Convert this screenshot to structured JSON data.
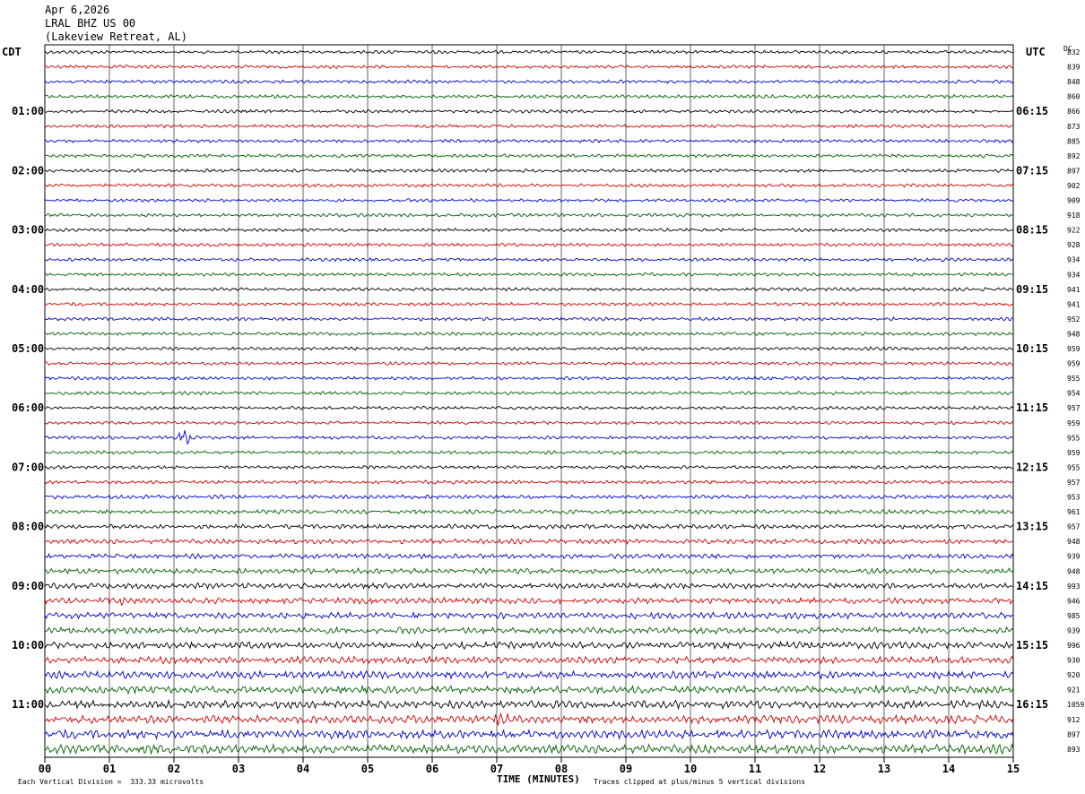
{
  "header": {
    "date": "Apr 6,2026",
    "station": "LRAL BHZ US 00",
    "location": "(Lakeview Retreat, AL)"
  },
  "left_axis_label": "CDT",
  "right_axis_label": "UTC",
  "dc_label": "DC",
  "bottom": {
    "left_note": "Each Vertical Division =  333.33 microvolts",
    "xlabel": "TIME (MINUTES)",
    "right_note": "Traces clipped at plus/minus 5 vertical divisions"
  },
  "colors": {
    "trace_cycle": [
      "#000000",
      "#d00000",
      "#0000cc",
      "#006000"
    ],
    "grid": "#000000"
  },
  "chart_data": {
    "type": "line",
    "description_kind": "helicorder",
    "x_ticks": [
      "00",
      "01",
      "02",
      "03",
      "04",
      "05",
      "06",
      "07",
      "08",
      "09",
      "10",
      "11",
      "12",
      "13",
      "14",
      "15"
    ],
    "xlim": [
      0,
      15
    ],
    "left_hour_labels": [
      "01:00",
      "02:00",
      "03:00",
      "04:00",
      "05:00",
      "06:00",
      "07:00",
      "08:00",
      "09:00",
      "10:00",
      "11:00"
    ],
    "right_hour_labels": [
      "06:15",
      "07:15",
      "08:15",
      "09:15",
      "10:15",
      "11:15",
      "12:15",
      "13:15",
      "14:15",
      "15:15",
      "16:15"
    ],
    "dc_values": [
      "832",
      "839",
      "848",
      "860",
      "866",
      "873",
      "885",
      "892",
      "897",
      "902",
      "909",
      "918",
      "922",
      "928",
      "934",
      "934",
      "941",
      "941",
      "952",
      "948",
      "959",
      "959",
      "955",
      "954",
      "957",
      "959",
      "955",
      "959",
      "955",
      "957",
      "953",
      "961",
      "957",
      "948",
      "939",
      "948",
      "993",
      "946",
      "985",
      "939",
      "996",
      "930",
      "920",
      "921",
      "1059",
      "912",
      "897",
      "893"
    ],
    "trace_count": 48,
    "traces_per_hour": 4
  }
}
